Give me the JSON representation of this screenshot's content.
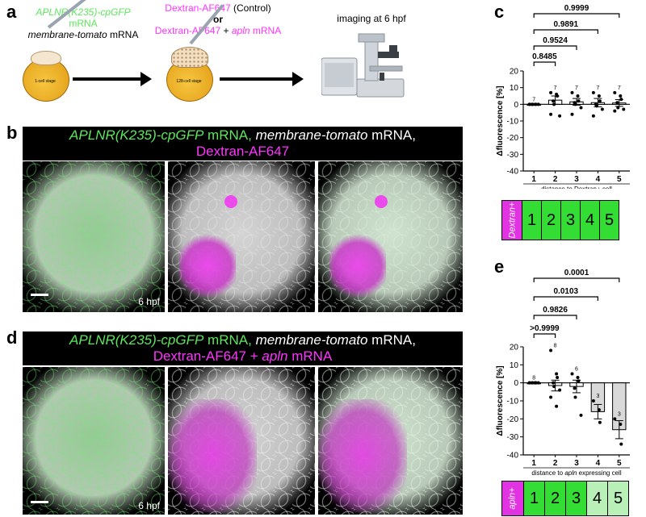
{
  "panel_a": {
    "letter": "a",
    "mrna_line1_italic": "APLNR(K235)-cpGFP",
    "mrna_line1_rest": " mRNA",
    "mrna_line2_italic": "membrane-tomato",
    "mrna_line2_rest": " mRNA",
    "stage1_label": "1-cell stage",
    "inj_line1_a": "Dextran-AF647",
    "inj_line1_b": " (Control)",
    "inj_or": "or",
    "inj_line3_a": "Dextran-AF647",
    "inj_line3_plus": " + ",
    "inj_line3_italic": "apln",
    "inj_line3_rest": " mRNA",
    "stage2_label": "128-cell stage",
    "imaging_label": "imaging at 6 hpf"
  },
  "panel_b": {
    "letter": "b",
    "banner_green_italic": "APLNR(K235)-cpGFP",
    "banner_rest1": " mRNA, ",
    "banner_italic2": "membrane-tomato",
    "banner_rest2": " mRNA,",
    "banner_line2": "Dextran-AF647",
    "time_label": "6 hpf"
  },
  "panel_d": {
    "letter": "d",
    "banner_green_italic": "APLNR(K235)-cpGFP",
    "banner_rest1": " mRNA, ",
    "banner_italic2": "membrane-tomato",
    "banner_rest2": " mRNA,",
    "banner_line2a": "Dextran-AF647 + ",
    "banner_line2_italic": "apln",
    "banner_line2b": " mRNA",
    "time_label": "6 hpf"
  },
  "panel_c": {
    "letter": "c",
    "key_label": "Dextran+",
    "key_cells": [
      "1",
      "2",
      "3",
      "4",
      "5"
    ]
  },
  "panel_e": {
    "letter": "e",
    "key_label": "apln+",
    "key_cells": [
      "1",
      "2",
      "3",
      "4",
      "5"
    ]
  },
  "chart_data": [
    {
      "type": "bar",
      "panel": "c",
      "categories": [
        "1",
        "2",
        "3",
        "4",
        "5"
      ],
      "values": [
        0,
        2.5,
        1.5,
        1.0,
        0.8
      ],
      "errors": [
        0,
        2.5,
        2.0,
        2.5,
        2.0
      ],
      "n_labels": [
        "7",
        "7",
        "7",
        "7",
        "7"
      ],
      "points": [
        [
          0,
          0,
          0,
          0,
          0,
          0,
          0
        ],
        [
          7,
          6,
          5,
          2,
          0,
          -7,
          -6
        ],
        [
          7,
          5,
          2,
          1,
          0,
          -2,
          -6
        ],
        [
          7,
          5,
          2,
          0,
          -1,
          -3,
          -7
        ],
        [
          7,
          5,
          3,
          1,
          -2,
          -3,
          -4
        ]
      ],
      "ylabel": "Δfluorescence [%]",
      "xlabel": "distance to Dextran+ cell",
      "ylim": [
        -40,
        20
      ],
      "yticks": [
        "20",
        "10",
        "0",
        "-10",
        "-20",
        "-30",
        "-40"
      ],
      "comparisons": [
        {
          "from": "1",
          "to": "5",
          "label": "0.9999"
        },
        {
          "from": "1",
          "to": "4",
          "label": "0.9891"
        },
        {
          "from": "1",
          "to": "3",
          "label": "0.9524"
        },
        {
          "from": "1",
          "to": "2",
          "label": "0.8485"
        }
      ],
      "colors": {
        "bar": "#ffffff",
        "bar_edge": "#000000"
      }
    },
    {
      "type": "bar",
      "panel": "e",
      "categories": [
        "1",
        "2",
        "3",
        "4",
        "5"
      ],
      "values": [
        0,
        -1.5,
        -2.0,
        -16.0,
        -26.0
      ],
      "errors": [
        0,
        3.0,
        3.5,
        4.0,
        5.0
      ],
      "n_labels": [
        "8",
        "8",
        "6",
        "3",
        "3"
      ],
      "points": [
        [
          0,
          0,
          0,
          0,
          0,
          0,
          0,
          0
        ],
        [
          18,
          5,
          3,
          0,
          -2,
          -4,
          -8,
          -13
        ],
        [
          5,
          3,
          1,
          -3,
          -8,
          -18
        ],
        [
          -10,
          -15,
          -22
        ],
        [
          -20,
          -23,
          -34
        ]
      ],
      "ylabel": "Δfluorescence [%]",
      "xlabel_a": "distance to ",
      "xlabel_italic": "apln",
      "xlabel_b": " expressing cell",
      "ylim": [
        -40,
        20
      ],
      "yticks": [
        "20",
        "10",
        "0",
        "-10",
        "-20",
        "-30",
        "-40"
      ],
      "comparisons": [
        {
          "from": "1",
          "to": "5",
          "label": "0.0001"
        },
        {
          "from": "1",
          "to": "4",
          "label": "0.0103"
        },
        {
          "from": "1",
          "to": "3",
          "label": "0.9826"
        },
        {
          "from": "1",
          "to": "2",
          "label": ">0.9999"
        }
      ],
      "colors": {
        "bar_low": "#ffffff",
        "bar_high": "#d9d9d9",
        "bar_edge": "#000000"
      }
    }
  ],
  "colors": {
    "green_text": "#5ce65c",
    "magenta_text": "#ff33ff",
    "key_green": "#33dd33",
    "key_light_green": "#b8f0b8",
    "key_magenta": "#e233e2"
  }
}
